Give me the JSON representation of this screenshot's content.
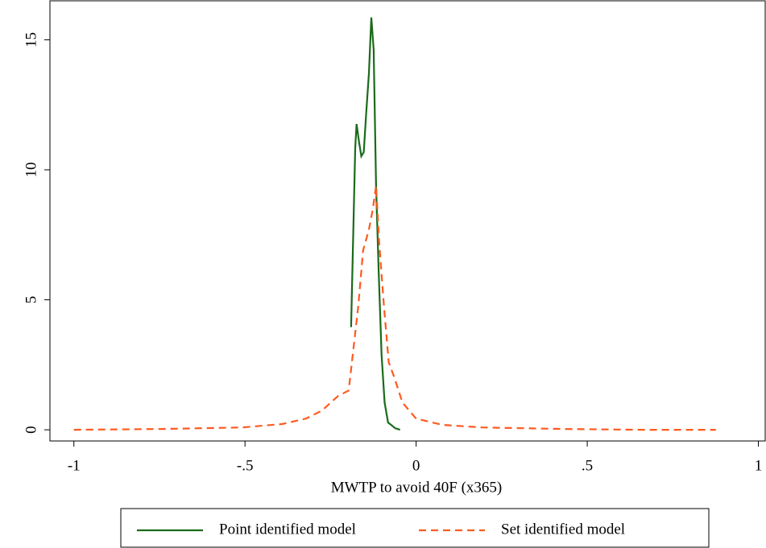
{
  "chart_data": {
    "type": "line",
    "xlabel": "MWTP to avoid 40F (x365)",
    "xlim": [
      -1.07,
      1.02
    ],
    "ylim": [
      -0.43,
      16.5
    ],
    "xticks": [
      -1,
      {
        "value": -0.5,
        "label": "-.5"
      },
      0,
      {
        "value": 0.5,
        "label": ".5"
      },
      1
    ],
    "yticks": [
      0,
      5,
      10,
      15
    ],
    "grid": false,
    "legend": "bottom",
    "series": [
      {
        "name": "Point identified model",
        "color": "#1a6b1a",
        "style": "solid",
        "x": [
          -0.19,
          -0.178,
          -0.174,
          -0.167,
          -0.16,
          -0.153,
          -0.146,
          -0.138,
          -0.131,
          -0.124,
          -0.117,
          -0.11,
          -0.101,
          -0.092,
          -0.082,
          -0.073,
          -0.061,
          -0.047
        ],
        "values": [
          3.95,
          10.83,
          11.76,
          11.08,
          10.52,
          10.68,
          12.16,
          13.7,
          15.86,
          14.63,
          9.38,
          6.3,
          2.9,
          1.05,
          0.28,
          0.19,
          0.06,
          0
        ]
      },
      {
        "name": "Set identified model",
        "color": "#ff5a1f",
        "style": "dashed",
        "x": [
          -1,
          -0.744,
          -0.509,
          -0.392,
          -0.322,
          -0.275,
          -0.228,
          -0.197,
          -0.185,
          -0.169,
          -0.155,
          -0.138,
          -0.127,
          -0.117,
          -0.108,
          -0.094,
          -0.08,
          -0.063,
          -0.04,
          0,
          0.077,
          0.195,
          0.43,
          0.664,
          0.876
        ],
        "values": [
          0,
          0.03,
          0.09,
          0.22,
          0.43,
          0.74,
          1.3,
          1.51,
          2.9,
          4.75,
          6.9,
          7.7,
          8.46,
          9.38,
          7.22,
          4.75,
          2.6,
          1.98,
          1.05,
          0.43,
          0.19,
          0.09,
          0.03,
          0,
          0
        ]
      }
    ]
  }
}
